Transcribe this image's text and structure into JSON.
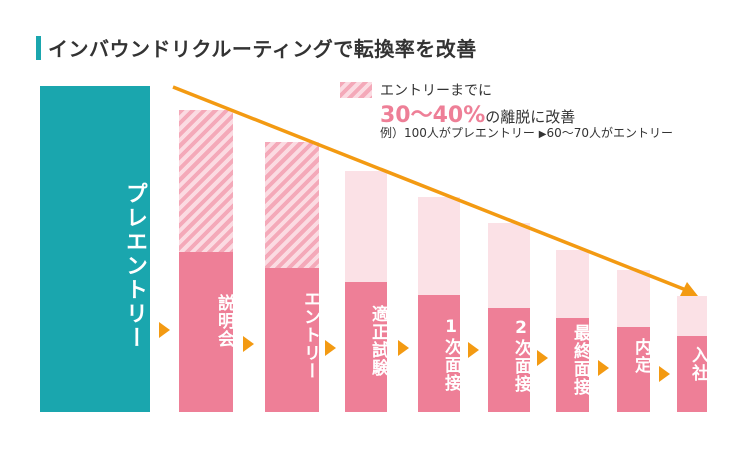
{
  "title": "インバウンドリクルーティングで転換率を改善",
  "legend": {
    "line1": "エントリーまでに",
    "percent": "30〜40%",
    "line2_suffix": "の離脱に改善",
    "example_prefix": "例）100人がプレエントリー",
    "example_suffix": "60〜70人がエントリー"
  },
  "stages": [
    {
      "label": "プレエントリー"
    },
    {
      "label": "説明会"
    },
    {
      "label": "エントリー"
    },
    {
      "label": "適正試験"
    },
    {
      "label": "1次面接"
    },
    {
      "label": "2次面接"
    },
    {
      "label": "最終面接"
    },
    {
      "label": "内定"
    },
    {
      "label": "入社"
    }
  ],
  "colors": {
    "teal": "#1aa6ae",
    "pink": "#ee7f97",
    "light_pink": "#fbe1e6",
    "hatch_pink": "#f4a9b9",
    "arrow_orange": "#f39a12"
  },
  "icons": [
    "trend-arrow",
    "flow-arrow-icon",
    "hatched-legend-swatch"
  ]
}
